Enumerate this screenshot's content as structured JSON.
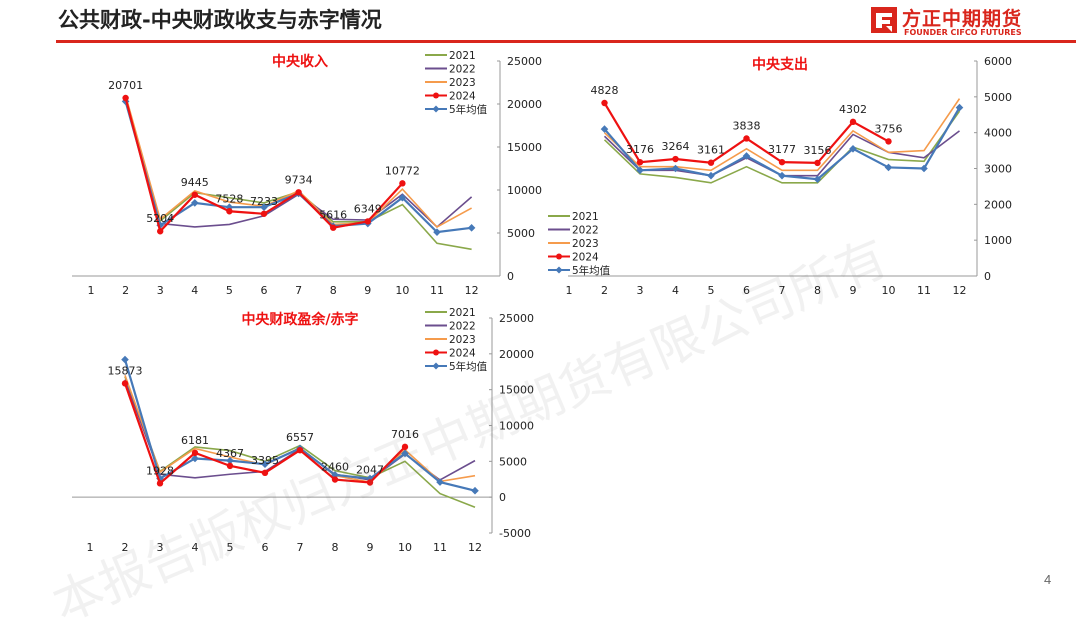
{
  "header": {
    "title": "公共财政-中央财政收支与赤字情况",
    "brand_cn": "方正中期期货",
    "brand_en": "FOUNDER CIFCO FUTURES",
    "brand_color": "#d9261c"
  },
  "page_number": "4",
  "watermark": "本报告版权归方正中期期货有限公司所有",
  "colors": {
    "2021": "#8aa84a",
    "2022": "#6b4e8e",
    "2023": "#f59b4c",
    "2024": "#ee1111",
    "avg": "#4679b8"
  },
  "chart_data": [
    {
      "type": "line",
      "title": "中央收入",
      "categories": [
        "1",
        "2",
        "3",
        "4",
        "5",
        "6",
        "7",
        "8",
        "9",
        "10",
        "11",
        "12"
      ],
      "y_axis_side": "right",
      "ylim": [
        0,
        25000
      ],
      "yticks": [
        "0",
        "5000",
        "10000",
        "15000",
        "20000",
        "25000"
      ],
      "legend_position": "top-right",
      "series": [
        {
          "name": "2021",
          "color_key": "2021",
          "marker": "none",
          "values": [
            null,
            20500,
            6400,
            9700,
            9100,
            8500,
            9800,
            6300,
            6300,
            8300,
            3800,
            3100
          ]
        },
        {
          "name": "2022",
          "color_key": "2022",
          "marker": "none",
          "values": [
            null,
            20300,
            6100,
            5700,
            6000,
            7000,
            9500,
            6600,
            6500,
            9500,
            5700,
            9200
          ]
        },
        {
          "name": "2023",
          "color_key": "2023",
          "marker": "none",
          "values": [
            null,
            21000,
            6600,
            9900,
            8600,
            8100,
            9900,
            6000,
            6200,
            10100,
            5700,
            7900
          ]
        },
        {
          "name": "2024",
          "color_key": "2024",
          "marker": "circle",
          "values": [
            null,
            20701,
            5204,
            9445,
            7528,
            7233,
            9734,
            5616,
            6349,
            10772,
            null,
            null
          ]
        },
        {
          "name": "5年均值",
          "color_key": "avg",
          "marker": "diamond",
          "values": [
            null,
            20300,
            5900,
            8500,
            8000,
            8000,
            9600,
            5800,
            6100,
            9100,
            5100,
            5600
          ]
        }
      ],
      "data_labels": [
        {
          "x": "2",
          "series": "2024",
          "text": "20701"
        },
        {
          "x": "3",
          "series": "2024",
          "text": "5204"
        },
        {
          "x": "4",
          "series": "2024",
          "text": "9445"
        },
        {
          "x": "5",
          "series": "2024",
          "text": "7528"
        },
        {
          "x": "6",
          "series": "2024",
          "text": "7233"
        },
        {
          "x": "7",
          "series": "2024",
          "text": "9734"
        },
        {
          "x": "8",
          "series": "2024",
          "text": "5616"
        },
        {
          "x": "9",
          "series": "2024",
          "text": "6349"
        },
        {
          "x": "10",
          "series": "2024",
          "text": "10772"
        }
      ]
    },
    {
      "type": "line",
      "title": "中央支出",
      "categories": [
        "1",
        "2",
        "3",
        "4",
        "5",
        "6",
        "7",
        "8",
        "9",
        "10",
        "11",
        "12"
      ],
      "y_axis_side": "right",
      "ylim": [
        0,
        6000
      ],
      "yticks": [
        "0",
        "1000",
        "2000",
        "3000",
        "4000",
        "5000",
        "6000"
      ],
      "legend_position": "bottom-left",
      "series": [
        {
          "name": "2021",
          "color_key": "2021",
          "marker": "none",
          "values": [
            null,
            3800,
            2850,
            2750,
            2600,
            3050,
            2600,
            2600,
            3600,
            3250,
            3200,
            4600
          ]
        },
        {
          "name": "2022",
          "color_key": "2022",
          "marker": "none",
          "values": [
            null,
            3900,
            2950,
            2950,
            2800,
            3300,
            2800,
            2800,
            3950,
            3450,
            3300,
            4050
          ]
        },
        {
          "name": "2023",
          "color_key": "2023",
          "marker": "none",
          "values": [
            null,
            4000,
            3050,
            3050,
            2950,
            3550,
            2950,
            2950,
            4050,
            3450,
            3500,
            4950
          ]
        },
        {
          "name": "2024",
          "color_key": "2024",
          "marker": "circle",
          "values": [
            null,
            4828,
            3176,
            3264,
            3161,
            3838,
            3177,
            3156,
            4302,
            3756,
            null,
            null
          ]
        },
        {
          "name": "5年均值",
          "color_key": "avg",
          "marker": "diamond",
          "values": [
            null,
            4100,
            2950,
            3000,
            2800,
            3350,
            2800,
            2700,
            3550,
            3030,
            3000,
            4700
          ]
        }
      ],
      "data_labels": [
        {
          "x": "2",
          "series": "2024",
          "text": "4828"
        },
        {
          "x": "3",
          "series": "2024",
          "text": "3176"
        },
        {
          "x": "4",
          "series": "2024",
          "text": "3264"
        },
        {
          "x": "5",
          "series": "2024",
          "text": "3161"
        },
        {
          "x": "6",
          "series": "2024",
          "text": "3838"
        },
        {
          "x": "7",
          "series": "2024",
          "text": "3177"
        },
        {
          "x": "8",
          "series": "2024",
          "text": "3156"
        },
        {
          "x": "9",
          "series": "2024",
          "text": "4302"
        },
        {
          "x": "10",
          "series": "2024",
          "text": "3756"
        }
      ]
    },
    {
      "type": "line",
      "title": "中央财政盈余/赤字",
      "categories": [
        "1",
        "2",
        "3",
        "4",
        "5",
        "6",
        "7",
        "8",
        "9",
        "10",
        "11",
        "12"
      ],
      "y_axis_side": "right",
      "ylim": [
        -5000,
        25000
      ],
      "yticks": [
        "-5000",
        "0",
        "5000",
        "10000",
        "15000",
        "20000",
        "25000"
      ],
      "legend_position": "top-right",
      "series": [
        {
          "name": "2021",
          "color_key": "2021",
          "marker": "none",
          "values": [
            null,
            16800,
            3600,
            7000,
            6500,
            5000,
            7200,
            3700,
            2700,
            5000,
            500,
            -1400
          ]
        },
        {
          "name": "2022",
          "color_key": "2022",
          "marker": "none",
          "values": [
            null,
            16400,
            3200,
            2700,
            3200,
            3600,
            6700,
            3200,
            2400,
            6000,
            2400,
            5100
          ]
        },
        {
          "name": "2023",
          "color_key": "2023",
          "marker": "none",
          "values": [
            null,
            17000,
            3500,
            6800,
            5600,
            4500,
            6900,
            3000,
            2100,
            6600,
            2200,
            3000
          ]
        },
        {
          "name": "2024",
          "color_key": "2024",
          "marker": "circle",
          "values": [
            null,
            15873,
            1928,
            6181,
            4367,
            3395,
            6557,
            2460,
            2047,
            7016,
            null,
            null
          ]
        },
        {
          "name": "5年均值",
          "color_key": "avg",
          "marker": "diamond",
          "values": [
            null,
            19200,
            2600,
            5400,
            5100,
            4600,
            6800,
            3100,
            2600,
            6100,
            2100,
            900
          ]
        }
      ],
      "data_labels": [
        {
          "x": "2",
          "series": "2024",
          "text": "15873"
        },
        {
          "x": "3",
          "series": "2024",
          "text": "1928"
        },
        {
          "x": "4",
          "series": "2024",
          "text": "6181"
        },
        {
          "x": "5",
          "series": "2024",
          "text": "4367"
        },
        {
          "x": "6",
          "series": "2024",
          "text": "3395"
        },
        {
          "x": "7",
          "series": "2024",
          "text": "6557"
        },
        {
          "x": "8",
          "series": "2024",
          "text": "2460"
        },
        {
          "x": "9",
          "series": "2024",
          "text": "2047"
        },
        {
          "x": "10",
          "series": "2024",
          "text": "7016"
        }
      ]
    }
  ]
}
